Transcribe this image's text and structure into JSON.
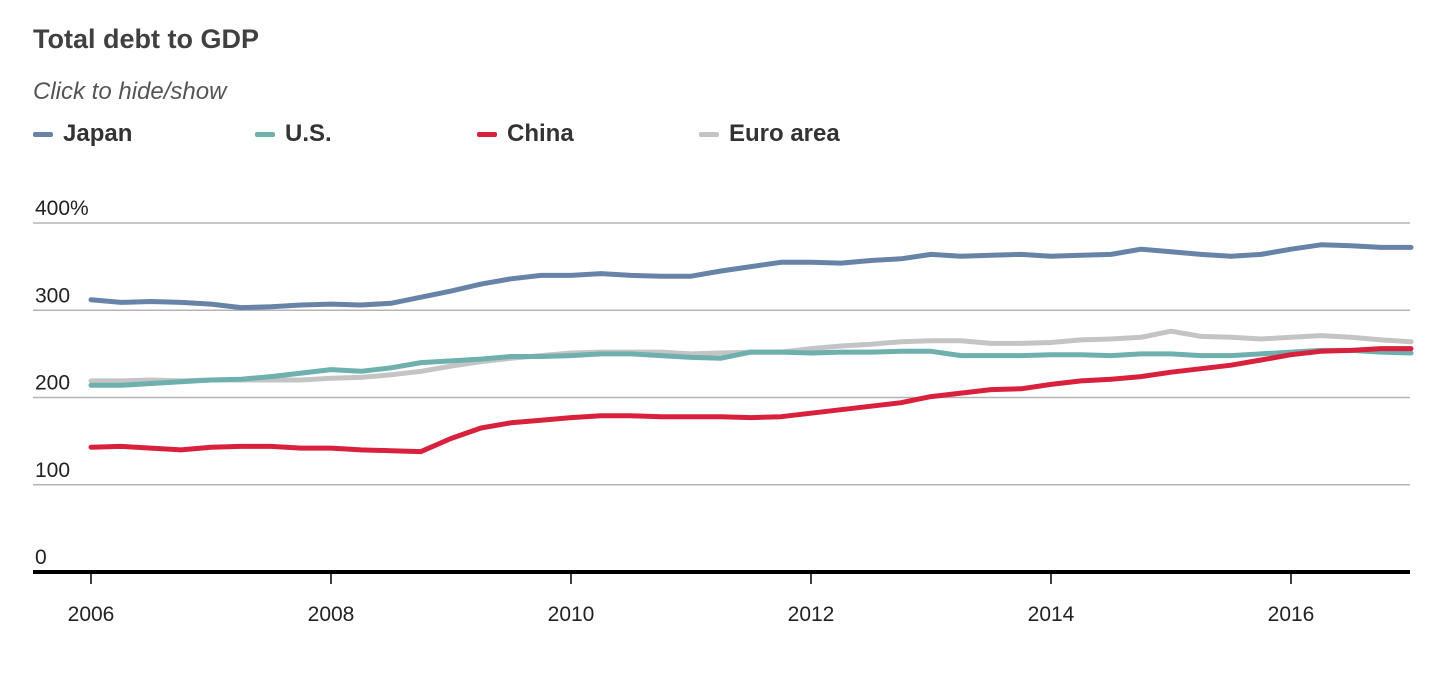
{
  "header": {
    "title": "Total debt to GDP",
    "subtitle": "Click to hide/show"
  },
  "legend": [
    {
      "label": "Japan",
      "color": "#6883a8"
    },
    {
      "label": "U.S.",
      "color": "#6db0ad"
    },
    {
      "label": "China",
      "color": "#d9213d"
    },
    {
      "label": "Euro area",
      "color": "#c4c4c4"
    }
  ],
  "chart_data": {
    "type": "line",
    "title": "Total debt to GDP",
    "subtitle": "Click to hide/show",
    "xlim": [
      2006,
      2017
    ],
    "ylim": [
      0,
      400
    ],
    "x_ticks": [
      2006,
      2008,
      2010,
      2012,
      2014,
      2016
    ],
    "x_tick_labels": [
      "2006",
      "2008",
      "2010",
      "2012",
      "2014",
      "2016"
    ],
    "y_ticks": [
      0,
      100,
      200,
      300,
      400
    ],
    "y_tick_labels": [
      "0",
      "100",
      "200",
      "300",
      "400%"
    ],
    "grid": true,
    "legend_position": "top-left",
    "x": [
      2006,
      2006.25,
      2006.5,
      2006.75,
      2007,
      2007.25,
      2007.5,
      2007.75,
      2008,
      2008.25,
      2008.5,
      2008.75,
      2009,
      2009.25,
      2009.5,
      2009.75,
      2010,
      2010.25,
      2010.5,
      2010.75,
      2011,
      2011.25,
      2011.5,
      2011.75,
      2012,
      2012.25,
      2012.5,
      2012.75,
      2013,
      2013.25,
      2013.5,
      2013.75,
      2014,
      2014.25,
      2014.5,
      2014.75,
      2015,
      2015.25,
      2015.5,
      2015.75,
      2016,
      2016.25,
      2016.5,
      2016.75,
      2017
    ],
    "series": [
      {
        "name": "Japan",
        "color": "#6883a8",
        "values": [
          312,
          309,
          310,
          309,
          307,
          303,
          304,
          306,
          307,
          306,
          308,
          315,
          322,
          330,
          336,
          340,
          340,
          342,
          340,
          339,
          339,
          345,
          350,
          355,
          355,
          354,
          357,
          359,
          364,
          362,
          363,
          364,
          362,
          363,
          364,
          370,
          367,
          364,
          362,
          364,
          370,
          375,
          374,
          372,
          372
        ]
      },
      {
        "name": "U.S.",
        "color": "#6db0ad",
        "values": [
          214,
          214,
          216,
          218,
          220,
          221,
          224,
          228,
          232,
          230,
          234,
          240,
          242,
          244,
          247,
          247,
          248,
          250,
          250,
          248,
          246,
          245,
          252,
          252,
          251,
          252,
          252,
          253,
          253,
          248,
          248,
          248,
          249,
          249,
          248,
          250,
          250,
          248,
          248,
          250,
          252,
          254,
          254,
          252,
          251
        ]
      },
      {
        "name": "China",
        "color": "#d9213d",
        "values": [
          143,
          144,
          142,
          140,
          143,
          144,
          144,
          142,
          142,
          140,
          139,
          138,
          153,
          165,
          171,
          174,
          177,
          179,
          179,
          178,
          178,
          178,
          177,
          178,
          182,
          186,
          190,
          194,
          201,
          205,
          209,
          210,
          215,
          219,
          221,
          224,
          229,
          233,
          237,
          243,
          249,
          253,
          254,
          256,
          256
        ]
      },
      {
        "name": "Euro area",
        "color": "#c4c4c4",
        "values": [
          219,
          219,
          220,
          219,
          220,
          220,
          220,
          220,
          222,
          223,
          226,
          230,
          236,
          241,
          245,
          248,
          251,
          252,
          252,
          252,
          250,
          251,
          252,
          252,
          256,
          259,
          261,
          264,
          265,
          265,
          262,
          262,
          263,
          266,
          267,
          269,
          276,
          270,
          269,
          267,
          269,
          271,
          269,
          266,
          264
        ]
      }
    ]
  }
}
